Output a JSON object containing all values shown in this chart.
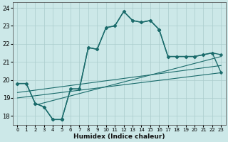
{
  "title": "",
  "xlabel": "Humidex (Indice chaleur)",
  "bg_color": "#cce8e8",
  "grid_color": "#aacccc",
  "line_color": "#1a6b6b",
  "xlim": [
    -0.5,
    23.5
  ],
  "ylim": [
    17.5,
    24.3
  ],
  "xticks": [
    0,
    1,
    2,
    3,
    4,
    5,
    6,
    7,
    8,
    9,
    10,
    11,
    12,
    13,
    14,
    15,
    16,
    17,
    18,
    19,
    20,
    21,
    22,
    23
  ],
  "yticks": [
    18,
    19,
    20,
    21,
    22,
    23,
    24
  ],
  "main_seg1_x": [
    0,
    1,
    2,
    3,
    4,
    5
  ],
  "main_seg1_y": [
    19.8,
    19.8,
    18.7,
    18.5,
    17.8,
    17.8
  ],
  "main_seg2_x": [
    5,
    6,
    7,
    8,
    9,
    10,
    11,
    12,
    13,
    14,
    15,
    16
  ],
  "main_seg2_y": [
    17.8,
    19.5,
    19.5,
    21.8,
    21.7,
    22.9,
    23.0,
    23.8,
    23.3,
    23.2,
    23.3,
    22.8
  ],
  "main_seg3_x": [
    16,
    17,
    18,
    19,
    20,
    21,
    22,
    23
  ],
  "main_seg3_y": [
    22.8,
    21.3,
    21.3,
    21.3,
    21.3,
    21.4,
    21.5,
    21.4
  ],
  "trend1_x": [
    0,
    23
  ],
  "trend1_y": [
    19.0,
    20.4
  ],
  "trend2_x": [
    0,
    23
  ],
  "trend2_y": [
    19.3,
    20.8
  ],
  "trend3_x": [
    2,
    23
  ],
  "trend3_y": [
    18.6,
    21.3
  ],
  "second_line_seg1_x": [
    0,
    1,
    2,
    3,
    4,
    5
  ],
  "second_line_seg1_y": [
    19.8,
    19.8,
    18.7,
    18.5,
    17.8,
    17.8
  ],
  "second_line_seg2_x": [
    5,
    6,
    7,
    8,
    9,
    10,
    11,
    12,
    13,
    14,
    15,
    16
  ],
  "second_line_seg2_y": [
    17.8,
    19.5,
    19.5,
    21.8,
    21.7,
    22.9,
    23.0,
    23.8,
    23.3,
    23.2,
    23.3,
    22.8
  ],
  "second_line_seg3_x": [
    16,
    17,
    18,
    19,
    20,
    21,
    22,
    23
  ],
  "second_line_seg3_y": [
    22.8,
    21.3,
    21.3,
    21.3,
    21.3,
    21.4,
    21.5,
    20.4
  ]
}
